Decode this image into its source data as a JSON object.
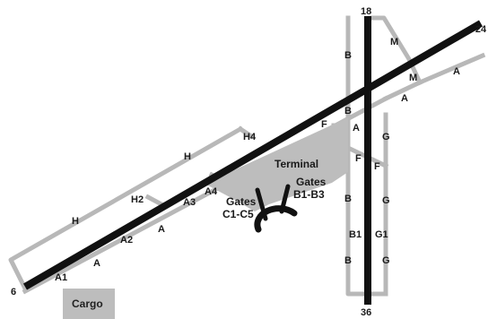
{
  "colors": {
    "background": "#ffffff",
    "taxiway": "#b8b8b8",
    "area": "#bdbdbd",
    "runway": "#111111",
    "gate_arc": "#111111"
  },
  "runways": {
    "end_6": "6",
    "end_24": "24",
    "end_18": "18",
    "end_36": "36"
  },
  "taxiways": {
    "A": [
      "A",
      "A",
      "A",
      "A"
    ],
    "A_connectors": [
      "A1",
      "A2",
      "A3",
      "A4"
    ],
    "B": [
      "B",
      "B",
      "B",
      "B"
    ],
    "B1": "B1",
    "F": [
      "F",
      "F",
      "F"
    ],
    "G": [
      "G",
      "G",
      "G"
    ],
    "G1": "G1",
    "H": [
      "H",
      "H"
    ],
    "H2": "H2",
    "H4": "H4",
    "M": [
      "M",
      "M"
    ]
  },
  "areas": {
    "terminal": "Terminal",
    "cargo": "Cargo"
  },
  "gates": {
    "west_title": "Gates",
    "west_range": "C1-C5",
    "east_title": "Gates",
    "east_range": "B1-B3"
  }
}
